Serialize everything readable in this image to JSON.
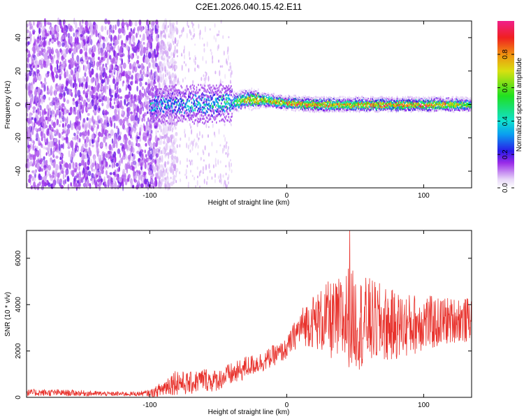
{
  "title": "C2E1.2026.040.15.42.E11",
  "chart_data": [
    {
      "type": "heatmap",
      "name": "spectrogram",
      "xlabel": "Height of straight line (km)",
      "ylabel": "Frequency (Hz)",
      "xlim": [
        -190,
        135
      ],
      "ylim": [
        -50,
        50
      ],
      "xticks": [
        -100,
        0,
        100
      ],
      "xtick_labels": [
        "-100",
        "0",
        "100"
      ],
      "yticks": [
        -40,
        -20,
        0,
        20,
        40
      ],
      "ytick_labels": [
        "-40",
        "-20",
        "0",
        "20",
        "40"
      ],
      "colorbar": {
        "label": "Normalized spectral amplitude",
        "range": [
          0,
          1
        ],
        "ticks": [
          0.0,
          0.2,
          0.4,
          0.6,
          0.8
        ],
        "tick_labels": [
          "0.0",
          "0.2",
          "0.4",
          "0.6",
          "0.8"
        ]
      },
      "description_points": {
        "noise_region_height_max": -88,
        "ridge": [
          {
            "h": -100,
            "f": 0,
            "amp": 0.35
          },
          {
            "h": -80,
            "f": 0,
            "amp": 0.3
          },
          {
            "h": -60,
            "f": 0,
            "amp": 0.35
          },
          {
            "h": -40,
            "f": 1,
            "amp": 0.45
          },
          {
            "h": -30,
            "f": 3,
            "amp": 0.75
          },
          {
            "h": -20,
            "f": 3,
            "amp": 0.85
          },
          {
            "h": -10,
            "f": 2,
            "amp": 0.7
          },
          {
            "h": 0,
            "f": 1,
            "amp": 0.85
          },
          {
            "h": 20,
            "f": 0,
            "amp": 0.9
          },
          {
            "h": 40,
            "f": 0,
            "amp": 0.8
          },
          {
            "h": 60,
            "f": 0,
            "amp": 0.85
          },
          {
            "h": 80,
            "f": 0,
            "amp": 0.85
          },
          {
            "h": 100,
            "f": 0,
            "amp": 0.9
          },
          {
            "h": 120,
            "f": 0,
            "amp": 0.8
          },
          {
            "h": 135,
            "f": 0,
            "amp": 0.6
          }
        ]
      }
    },
    {
      "type": "line",
      "name": "snr",
      "xlabel": "Height of straight line (km)",
      "ylabel": "SNR (10 * v/v)",
      "xlim": [
        -190,
        135
      ],
      "ylim": [
        0,
        7200
      ],
      "xticks": [
        -100,
        0,
        100
      ],
      "xtick_labels": [
        "-100",
        "0",
        "100"
      ],
      "yticks": [
        0,
        2000,
        4000,
        6000
      ],
      "ytick_labels": [
        "0",
        "2000",
        "4000",
        "6000"
      ],
      "color": "#e8322c",
      "series": [
        {
          "name": "SNR",
          "x": [
            -190,
            -170,
            -150,
            -130,
            -110,
            -100,
            -95,
            -90,
            -85,
            -80,
            -75,
            -70,
            -65,
            -60,
            -55,
            -50,
            -45,
            -40,
            -35,
            -30,
            -25,
            -20,
            -15,
            -10,
            -5,
            0,
            5,
            10,
            15,
            20,
            25,
            30,
            35,
            40,
            45,
            50,
            55,
            60,
            65,
            70,
            75,
            80,
            85,
            90,
            95,
            100,
            105,
            110,
            115,
            120,
            125,
            130,
            135
          ],
          "mean": [
            200,
            200,
            180,
            150,
            150,
            180,
            250,
            400,
            600,
            700,
            600,
            600,
            700,
            800,
            700,
            750,
            900,
            1000,
            1100,
            1300,
            1400,
            1500,
            1600,
            1800,
            1900,
            2100,
            2600,
            3000,
            3200,
            3300,
            3300,
            3400,
            3200,
            3300,
            3500,
            3300,
            3200,
            3300,
            3200,
            3200,
            3100,
            3100,
            3100,
            3100,
            3200,
            3300,
            3200,
            3200,
            3300,
            3300,
            3400,
            3300,
            3400
          ],
          "amp": [
            150,
            150,
            130,
            100,
            100,
            150,
            250,
            400,
            500,
            600,
            500,
            500,
            500,
            500,
            500,
            450,
            500,
            500,
            500,
            500,
            450,
            450,
            450,
            450,
            450,
            450,
            600,
            800,
            1000,
            1200,
            1400,
            1600,
            1800,
            2000,
            2200,
            2100,
            2000,
            1900,
            1800,
            1700,
            1600,
            1500,
            1400,
            1400,
            1300,
            1300,
            1200,
            1100,
            1100,
            1000,
            1000,
            1000,
            900
          ]
        }
      ],
      "peak": {
        "x": 46,
        "y": 7200
      }
    }
  ]
}
